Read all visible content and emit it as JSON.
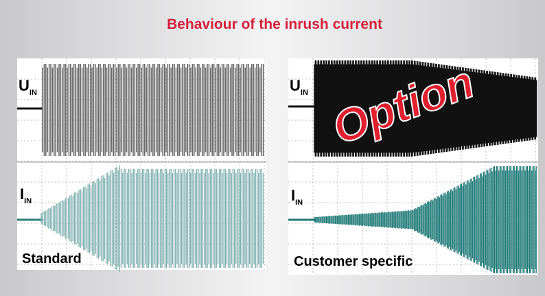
{
  "title": "Behaviour of the inrush current",
  "panels": [
    {
      "voltage_label": {
        "symbol": "U",
        "subscript": "IN"
      },
      "current_label": {
        "symbol": "I",
        "subscript": "IN"
      },
      "caption": "Standard"
    },
    {
      "voltage_label": {
        "symbol": "U",
        "subscript": "IN"
      },
      "current_label": {
        "symbol": "I",
        "subscript": "IN"
      },
      "caption": "Customer specific",
      "overlay": "Option"
    }
  ]
}
